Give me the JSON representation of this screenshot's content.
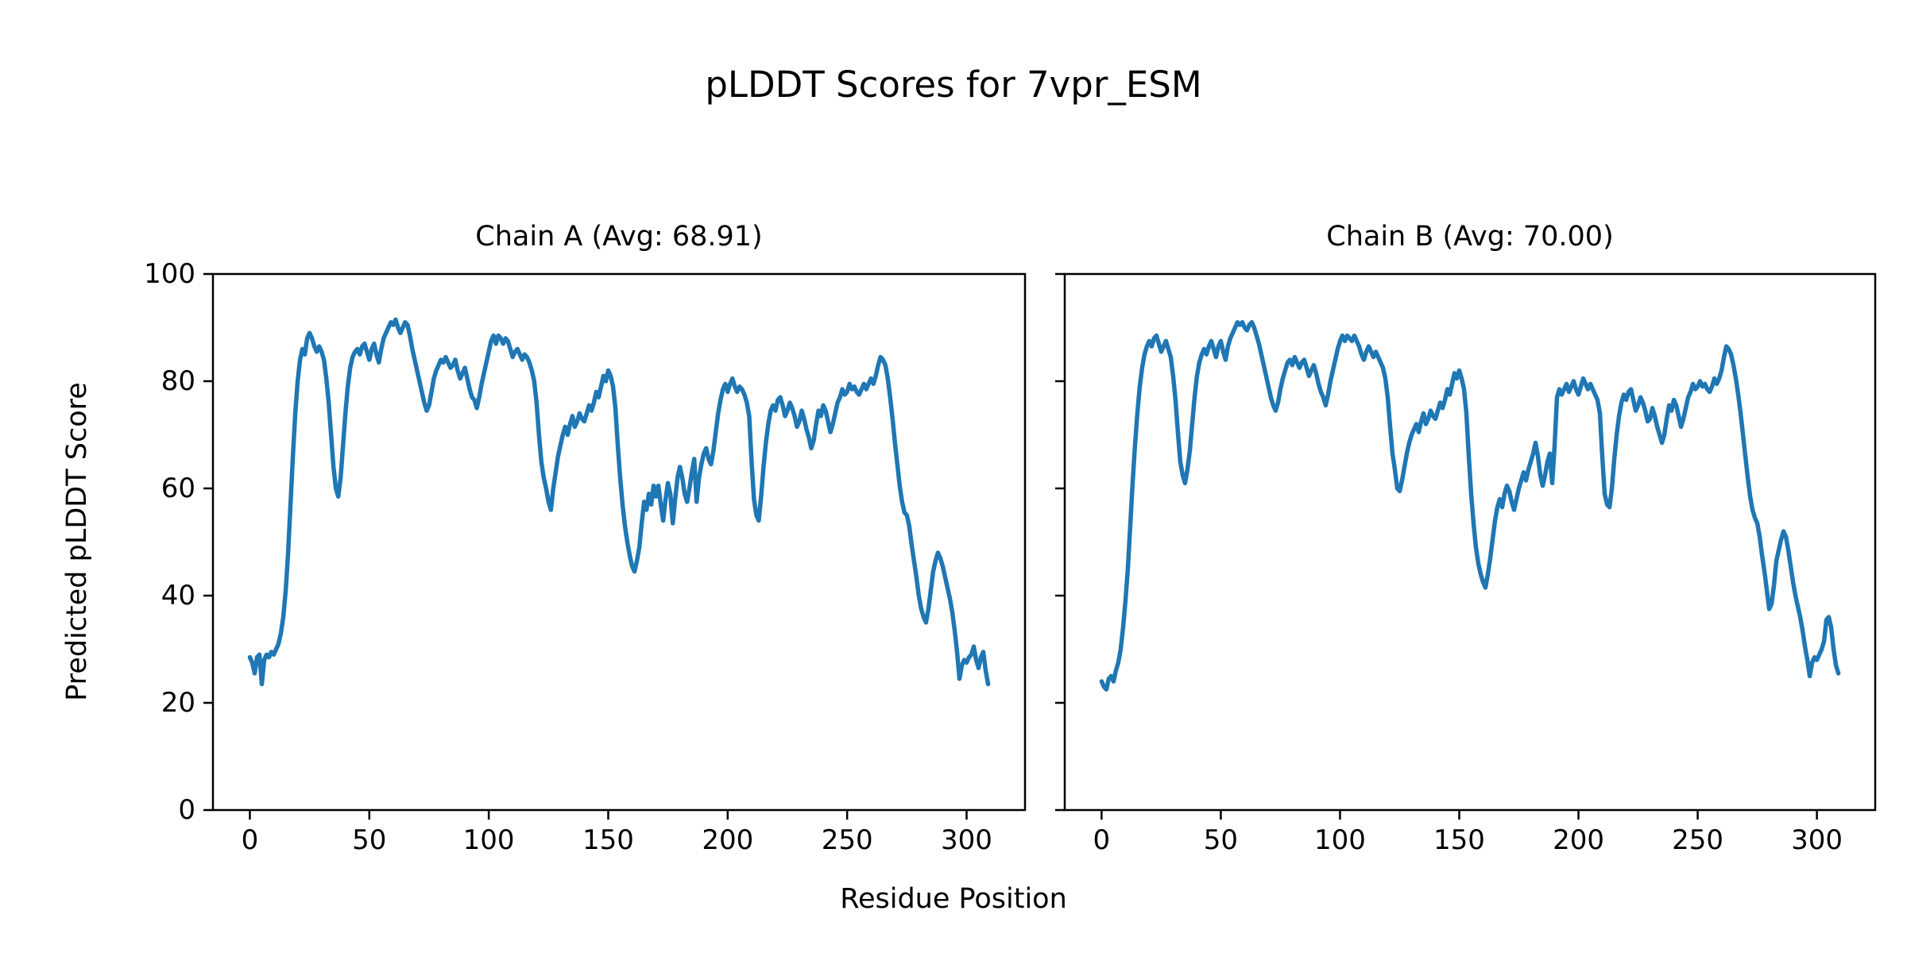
{
  "figure": {
    "title": "pLDDT Scores for 7vpr_ESM",
    "ylabel": "Predicted pLDDT Score",
    "xlabel": "Residue Position",
    "background": "#ffffff",
    "text_color": "#000000",
    "spine_color": "#000000"
  },
  "chart_data": [
    {
      "type": "line",
      "title": "Chain A (Avg: 68.91)",
      "chain": "A",
      "avg": 68.91,
      "n_points": 310,
      "x_start_index": 0,
      "xlabel": "Residue Position",
      "ylabel": "Predicted pLDDT Score",
      "xticks": [
        0,
        50,
        100,
        150,
        200,
        250,
        300
      ],
      "yticks": [
        0,
        20,
        40,
        60,
        80,
        100
      ],
      "show_ytick_labels": true,
      "xlim": [
        -15.45,
        324.45
      ],
      "ylim": [
        0,
        100
      ],
      "grid": false,
      "legend": "none",
      "line_color": "#1f77b4",
      "values": [
        28.5,
        27.5,
        25.5,
        28.5,
        29,
        23.5,
        28,
        29,
        28.5,
        29.5,
        29,
        30,
        31,
        33,
        36,
        41,
        48,
        57,
        66,
        74,
        80,
        84,
        86,
        85,
        88,
        89,
        88,
        86.5,
        85.5,
        86.5,
        85.5,
        84,
        80.5,
        76,
        70,
        64,
        60,
        58.5,
        62,
        68,
        74,
        79,
        82.5,
        84.5,
        85.5,
        86,
        85,
        86.5,
        87,
        85.5,
        84,
        86,
        87,
        85,
        83.5,
        86,
        88,
        89,
        90,
        91,
        90.5,
        91.5,
        90,
        89,
        90,
        91,
        90.5,
        88.5,
        86,
        84,
        82,
        80,
        78,
        76,
        74.5,
        75.5,
        78,
        80.5,
        82,
        83,
        84,
        83.5,
        84.5,
        83.5,
        82.5,
        83,
        84,
        82,
        80.5,
        81.5,
        82.5,
        80.5,
        78.5,
        77,
        76.5,
        75,
        77,
        79.5,
        81.5,
        83.5,
        85.5,
        87.5,
        88.5,
        87,
        88.5,
        88,
        87,
        88,
        87.5,
        86,
        84.5,
        85.5,
        86,
        85,
        84,
        85,
        84.5,
        83.5,
        82,
        80,
        76,
        70,
        65,
        62,
        60,
        57.5,
        56,
        60,
        63,
        66,
        68,
        70,
        71.5,
        70,
        72,
        73.5,
        71.5,
        72.5,
        74,
        73,
        72.5,
        74,
        75.5,
        74.5,
        76,
        78,
        77,
        79,
        81,
        80,
        82,
        81,
        79,
        75,
        68,
        62,
        57,
        53,
        50,
        47.5,
        45.5,
        44.5,
        46.5,
        49,
        53.5,
        57.5,
        56,
        59,
        57,
        60.5,
        58.5,
        60.5,
        57,
        54,
        58,
        61,
        59,
        53.5,
        58,
        62,
        64,
        62,
        59,
        57.5,
        60,
        63,
        65.5,
        57.5,
        62,
        64.5,
        66.5,
        67.5,
        65.5,
        64.5,
        67,
        70.5,
        74,
        76.5,
        78.5,
        79.5,
        78,
        79.5,
        80.5,
        79,
        78,
        79,
        78.5,
        77.5,
        76,
        73.5,
        65,
        58,
        55,
        54,
        58.5,
        64,
        68.5,
        72,
        74.5,
        75.5,
        74.5,
        76.5,
        77,
        75.5,
        73.5,
        74.5,
        76,
        75,
        73.5,
        71.5,
        72.5,
        74.5,
        73,
        71,
        69.5,
        67.5,
        69,
        72,
        74.5,
        73.5,
        75.5,
        74.5,
        72.5,
        70.5,
        72,
        74,
        76,
        77,
        78.5,
        77.5,
        78,
        79.5,
        78.5,
        79,
        78,
        77.5,
        78.5,
        79.5,
        78.5,
        79.5,
        80.5,
        79.5,
        81,
        83,
        84.5,
        84,
        83,
        80.5,
        77,
        73,
        68.5,
        64.5,
        60.5,
        57.5,
        55.5,
        55,
        53,
        49.5,
        46.5,
        43.5,
        40,
        37.5,
        36,
        35,
        37.5,
        41,
        44.5,
        46.5,
        48,
        47,
        45.5,
        43.5,
        41.5,
        39.5,
        37,
        33.5,
        29.5,
        24.5,
        27,
        28,
        27.5,
        28.5,
        29,
        30.5,
        28,
        26.5,
        28.5,
        29.5,
        26,
        23.5
      ]
    },
    {
      "type": "line",
      "title": "Chain B (Avg: 70.00)",
      "chain": "B",
      "avg": 70.0,
      "n_points": 310,
      "x_start_index": 0,
      "xlabel": "Residue Position",
      "ylabel": "Predicted pLDDT Score",
      "xticks": [
        0,
        50,
        100,
        150,
        200,
        250,
        300
      ],
      "yticks": [
        0,
        20,
        40,
        60,
        80,
        100
      ],
      "show_ytick_labels": false,
      "xlim": [
        -15.45,
        324.45
      ],
      "ylim": [
        0,
        100
      ],
      "grid": false,
      "legend": "none",
      "line_color": "#1f77b4",
      "values": [
        24,
        23,
        22.5,
        24.5,
        25,
        24,
        26,
        27.5,
        30,
        34,
        39,
        45,
        53,
        61,
        68,
        74,
        79,
        82.5,
        85,
        86.5,
        87.5,
        86.5,
        88,
        88.5,
        87,
        85.5,
        86.5,
        87.5,
        86,
        84.5,
        81,
        76.5,
        70.5,
        65,
        62.5,
        61,
        63.5,
        67,
        72,
        77,
        81,
        83.5,
        85,
        86,
        85,
        86.5,
        87.5,
        86,
        84.5,
        86.5,
        87.5,
        85.5,
        84,
        86.5,
        88,
        89,
        90,
        91,
        90.5,
        91,
        90,
        89.5,
        90.5,
        91,
        90,
        88.5,
        87,
        85,
        83,
        81,
        79,
        77,
        75.5,
        74.5,
        76,
        78.5,
        80.5,
        82,
        83.5,
        84,
        83,
        84.5,
        83.5,
        82.5,
        83.5,
        84,
        82.5,
        81,
        82,
        83,
        81.5,
        79.5,
        78,
        77,
        75.5,
        77.5,
        80,
        82,
        84,
        86,
        87.5,
        88.5,
        87.5,
        88.5,
        88,
        87.5,
        88.5,
        87.5,
        86.5,
        85,
        84,
        85.5,
        86.5,
        85.5,
        84.5,
        85.5,
        84.5,
        83.5,
        82.5,
        80.5,
        77,
        71.5,
        66.5,
        63.5,
        60,
        59.5,
        61.5,
        64,
        66.5,
        68.5,
        70,
        71,
        72,
        70.5,
        72.5,
        74,
        72,
        73,
        74.5,
        73.5,
        73,
        74.5,
        76,
        75,
        76.5,
        78.5,
        77.5,
        79.5,
        81.5,
        80.5,
        82,
        80.5,
        78.5,
        74,
        66,
        59,
        53.5,
        49,
        46,
        44,
        42.5,
        41.5,
        44,
        47,
        50.5,
        54,
        56.5,
        58,
        56.5,
        59,
        60.5,
        59.5,
        57.5,
        56,
        58,
        60,
        61.5,
        63,
        61.5,
        63.5,
        65,
        66.5,
        68.5,
        66,
        62.5,
        60.5,
        62.5,
        65,
        66.5,
        61,
        68,
        77,
        78.5,
        77.5,
        78.5,
        79.5,
        78,
        79,
        80,
        78.5,
        77.5,
        79,
        80.5,
        79.5,
        78.5,
        79.5,
        78.5,
        77.5,
        76.5,
        74,
        66,
        59,
        57,
        56.5,
        60,
        65.5,
        70,
        73.5,
        76,
        77.5,
        76.5,
        78,
        78.5,
        76.5,
        74.5,
        75.5,
        77,
        76,
        74.5,
        72.5,
        73,
        75,
        73.5,
        71.5,
        70,
        68.5,
        70,
        73,
        75.5,
        74.5,
        76.5,
        75.5,
        73.5,
        71.5,
        73,
        75,
        77,
        78,
        79.5,
        78.5,
        79,
        80,
        79,
        79.5,
        78.5,
        78,
        79,
        80.5,
        79.5,
        80.5,
        82,
        84.5,
        86.5,
        86,
        85,
        83,
        80.5,
        77.5,
        74,
        70,
        66,
        62,
        58.5,
        56,
        54.5,
        53.5,
        51,
        47.5,
        44.5,
        41,
        37.5,
        38.5,
        42,
        46.5,
        48.5,
        50.5,
        52,
        51,
        48.5,
        45.5,
        42.5,
        40,
        38,
        36,
        33.5,
        30.5,
        28,
        25,
        27.5,
        28.5,
        28,
        29,
        30,
        31.5,
        35.5,
        36,
        34,
        30,
        27,
        25.5
      ]
    }
  ]
}
